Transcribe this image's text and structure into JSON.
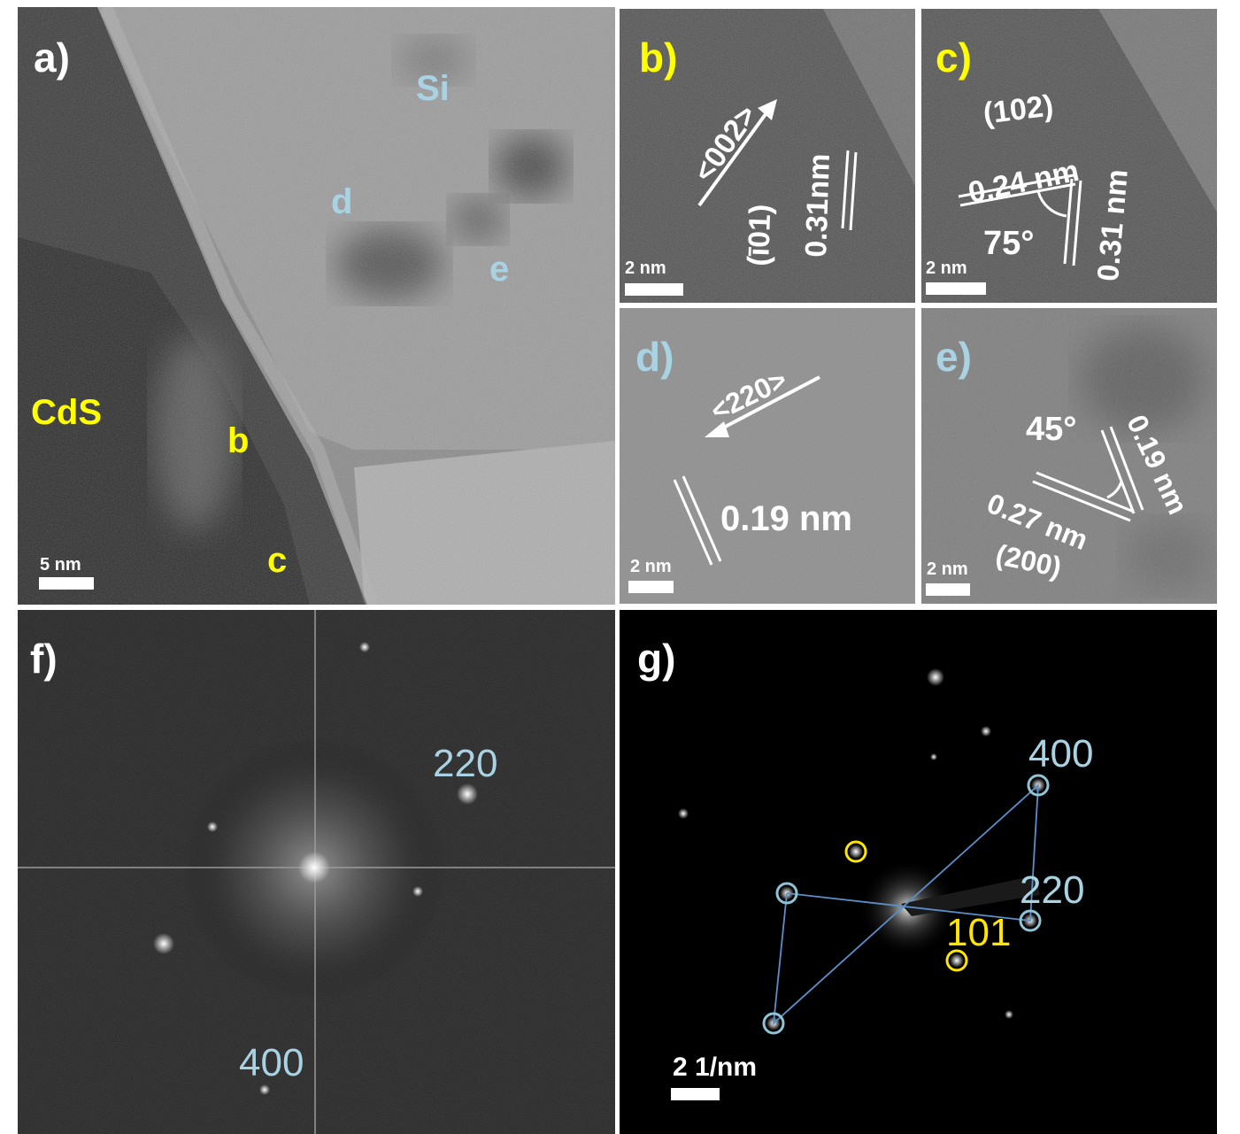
{
  "panels": {
    "a": {
      "label": "a)",
      "regions": [
        "Si",
        "CdS"
      ],
      "markers": [
        "b",
        "c",
        "d",
        "e"
      ],
      "scale_bar": "5 nm"
    },
    "b": {
      "label": "b)",
      "direction": "<002>",
      "plane": "(ī01)",
      "spacing": "0.31nm",
      "scale_bar": "2 nm"
    },
    "c": {
      "label": "c)",
      "plane": "(102)",
      "spacing1": "0.24 nm",
      "spacing2": "0.31 nm",
      "angle": "75°",
      "scale_bar": "2 nm"
    },
    "d": {
      "label": "d)",
      "direction": "<220>",
      "spacing": "0.19 nm",
      "scale_bar": "2 nm"
    },
    "e": {
      "label": "e)",
      "angle": "45°",
      "spacing1": "0.19 nm",
      "spacing2": "0.27 nm",
      "plane": "(200)",
      "scale_bar": "2 nm"
    },
    "f": {
      "label": "f)",
      "index1": "220",
      "index2": "400"
    },
    "g": {
      "label": "g)",
      "index1": "400",
      "index2": "220",
      "index3": "101",
      "scale_bar": "2 1/nm",
      "colors": {
        "si_circle": "#8fc3d6",
        "cds_circle": "#ffe600",
        "line": "#5b8fc9"
      }
    }
  }
}
